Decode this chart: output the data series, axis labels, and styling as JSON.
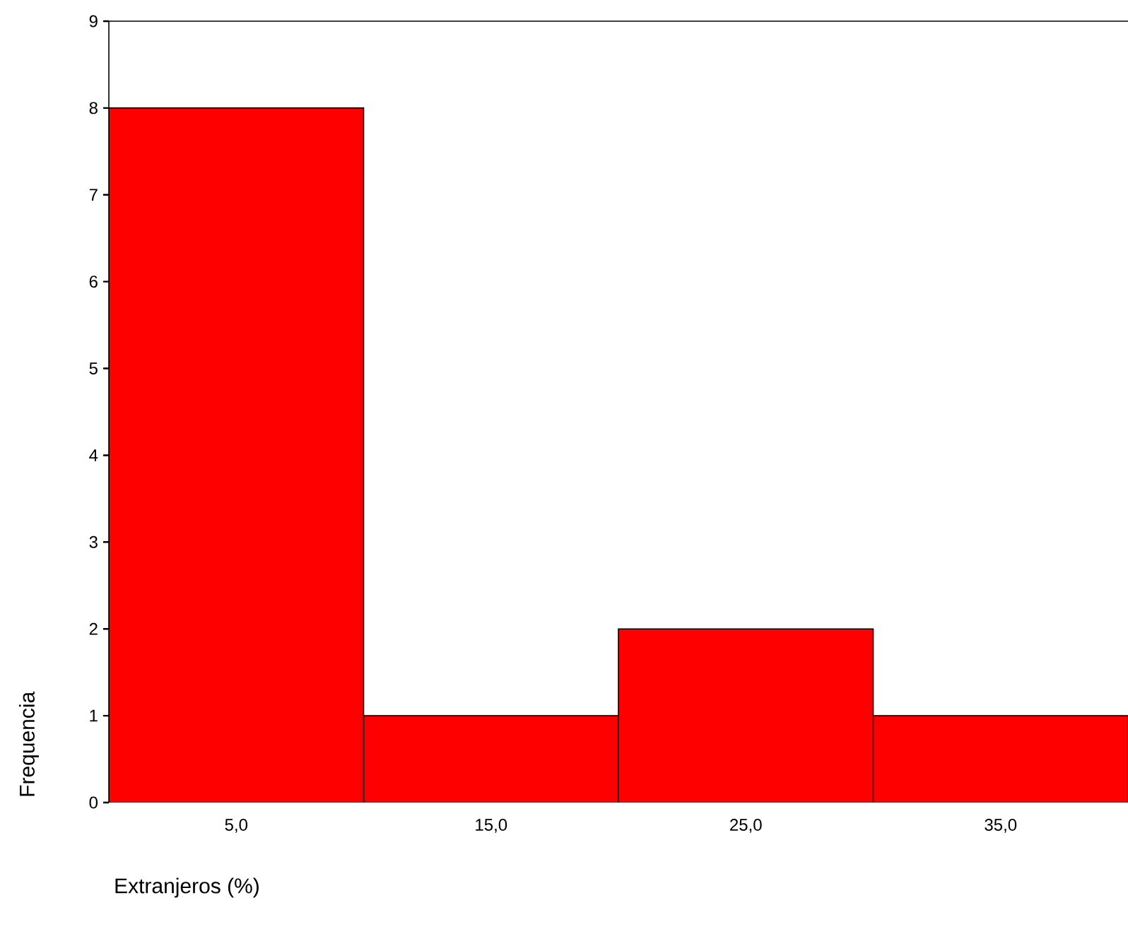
{
  "chart_data": {
    "type": "histogram",
    "xlabel": "Extranjeros (%)",
    "ylabel": "Frequencia",
    "bins": [
      0,
      10,
      20,
      30,
      40
    ],
    "values": [
      8,
      1,
      2,
      1
    ],
    "color": "#ff0000",
    "xlim": [
      0,
      40
    ],
    "xticks": [
      {
        "value": 5,
        "label": "5,0"
      },
      {
        "value": 15,
        "label": "15,0"
      },
      {
        "value": 25,
        "label": "25,0"
      },
      {
        "value": 35,
        "label": "35,0"
      }
    ],
    "ylim": [
      0,
      9
    ],
    "yticks": [
      0,
      1,
      2,
      3,
      4,
      5,
      6,
      7,
      8,
      9
    ]
  }
}
